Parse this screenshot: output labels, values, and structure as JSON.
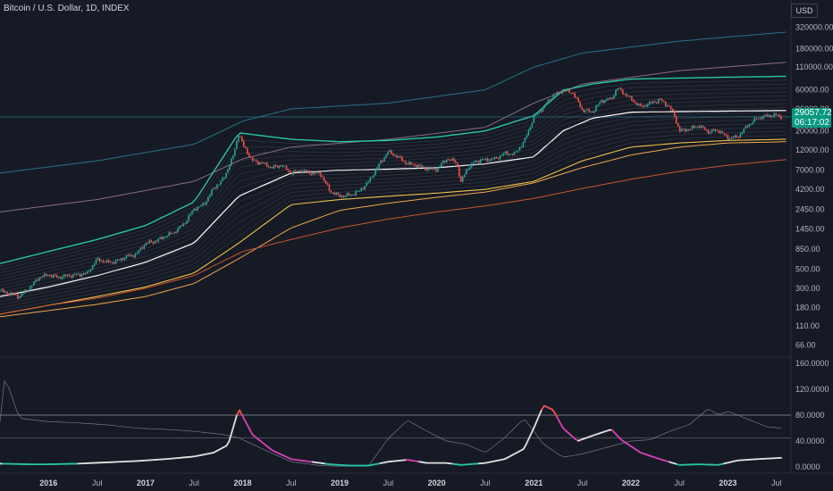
{
  "header": {
    "title": "Bitcoin / U.S. Dollar, 1D, INDEX",
    "currency_button": "USD"
  },
  "price_badge": {
    "price": "29057.72",
    "countdown": "06:17:02"
  },
  "colors": {
    "background": "#161a25",
    "candle_up": "#26a69a",
    "candle_down": "#ef5350",
    "top_band": "#2a6f87",
    "upper_band": "#8a6b86",
    "green_band": "#26c6a6",
    "mid_line": "#ffffff",
    "lower_band": "#f0c24a",
    "floor_line": "#f2a74b",
    "bottom_band": "#c9542f",
    "osc_main": "#e0e0e0",
    "osc_hot": "#d83fb6",
    "osc_peak": "#ef5350",
    "osc_cold": "#26c6a6",
    "osc_secondary": "#8a8f98"
  },
  "chart_data": [
    {
      "type": "line",
      "name": "price-panel",
      "title": "Bitcoin / U.S. Dollar, 1D, INDEX",
      "y_scale": "log",
      "ylim": [
        50,
        600000
      ],
      "y_ticks": [
        "320000.00",
        "180000.00",
        "110000.00",
        "60000.00",
        "36000.00",
        "20000.00",
        "12000.00",
        "7000.00",
        "4200.00",
        "2450.00",
        "1450.00",
        "850.00",
        "500.00",
        "300.00",
        "180.00",
        "110.00",
        "66.00"
      ],
      "y_tick_values": [
        320000,
        180000,
        110000,
        60000,
        36000,
        20000,
        12000,
        7000,
        4200,
        2450,
        1450,
        850,
        500,
        300,
        180,
        110,
        66
      ],
      "last_price": 29057.72,
      "price": {
        "x": [
          2015.5,
          2015.6,
          2015.7,
          2015.8,
          2015.9,
          2016.0,
          2016.1,
          2016.2,
          2016.3,
          2016.4,
          2016.5,
          2016.6,
          2016.7,
          2016.8,
          2016.9,
          2017.0,
          2017.1,
          2017.2,
          2017.3,
          2017.4,
          2017.5,
          2017.6,
          2017.7,
          2017.8,
          2017.9,
          2017.96,
          2018.0,
          2018.1,
          2018.2,
          2018.3,
          2018.4,
          2018.5,
          2018.6,
          2018.7,
          2018.8,
          2018.9,
          2018.96,
          2019.0,
          2019.1,
          2019.2,
          2019.3,
          2019.4,
          2019.5,
          2019.6,
          2019.7,
          2019.8,
          2019.9,
          2020.0,
          2020.1,
          2020.2,
          2020.25,
          2020.3,
          2020.4,
          2020.5,
          2020.6,
          2020.7,
          2020.8,
          2020.9,
          2021.0,
          2021.1,
          2021.2,
          2021.3,
          2021.4,
          2021.5,
          2021.6,
          2021.7,
          2021.8,
          2021.86,
          2021.9,
          2022.0,
          2022.1,
          2022.2,
          2022.3,
          2022.4,
          2022.45,
          2022.5,
          2022.6,
          2022.7,
          2022.8,
          2022.9,
          2023.0,
          2023.1,
          2023.2,
          2023.3,
          2023.4,
          2023.5,
          2023.55
        ],
        "y": [
          280,
          260,
          240,
          300,
          400,
          430,
          400,
          420,
          430,
          450,
          650,
          600,
          610,
          700,
          740,
          1000,
          1050,
          1200,
          1350,
          1700,
          2500,
          2800,
          4300,
          5500,
          10000,
          19000,
          14000,
          9000,
          8500,
          7500,
          8000,
          6500,
          7000,
          6500,
          6400,
          4000,
          3700,
          3500,
          3600,
          4000,
          5200,
          8000,
          11500,
          10000,
          8300,
          8000,
          7200,
          7200,
          9500,
          8800,
          5000,
          7000,
          9000,
          9300,
          9500,
          11000,
          10800,
          15000,
          29000,
          38000,
          52000,
          59000,
          56000,
          35000,
          33000,
          45000,
          47000,
          63000,
          58000,
          47000,
          38000,
          42000,
          46000,
          38000,
          30000,
          20000,
          21000,
          23000,
          19500,
          20500,
          16500,
          17000,
          23000,
          28000,
          30000,
          30500,
          29057
        ]
      },
      "bands": [
        {
          "name": "top",
          "x": [
            2015.5,
            2016.5,
            2017.5,
            2018.0,
            2018.5,
            2019.5,
            2020.5,
            2021.0,
            2021.5,
            2022.5,
            2023.6
          ],
          "y": [
            6500,
            9000,
            14000,
            26000,
            36000,
            42000,
            60000,
            110000,
            160000,
            220000,
            280000
          ]
        },
        {
          "name": "upper",
          "x": [
            2015.5,
            2016.5,
            2017.5,
            2018.0,
            2018.5,
            2019.5,
            2020.5,
            2021.0,
            2021.5,
            2022.5,
            2023.6
          ],
          "y": [
            2300,
            3200,
            5200,
            9500,
            13000,
            16000,
            22000,
            42000,
            70000,
            100000,
            125000
          ]
        },
        {
          "name": "green",
          "x": [
            2015.5,
            2016.0,
            2016.5,
            2017.0,
            2017.5,
            2017.96,
            2018.5,
            2019.0,
            2019.5,
            2020.0,
            2020.5,
            2021.0,
            2021.3,
            2021.6,
            2022.0,
            2022.5,
            2023.0,
            2023.6
          ],
          "y": [
            580,
            800,
            1100,
            1600,
            3000,
            19000,
            16000,
            15000,
            15500,
            17000,
            20000,
            30000,
            59000,
            70000,
            80000,
            82000,
            84000,
            86000
          ]
        },
        {
          "name": "mid",
          "x": [
            2015.5,
            2016.0,
            2016.5,
            2017.0,
            2017.5,
            2017.96,
            2018.5,
            2019.0,
            2019.5,
            2020.0,
            2020.5,
            2021.0,
            2021.3,
            2021.6,
            2022.0,
            2022.5,
            2023.0,
            2023.6
          ],
          "y": [
            240,
            310,
            420,
            600,
            1000,
            3500,
            6500,
            7000,
            7200,
            7500,
            8300,
            10000,
            20000,
            28000,
            33000,
            33500,
            34000,
            34500
          ]
        },
        {
          "name": "lower",
          "x": [
            2015.5,
            2016.0,
            2016.5,
            2017.0,
            2017.5,
            2017.96,
            2018.5,
            2019.0,
            2019.5,
            2020.0,
            2020.5,
            2021.0,
            2021.5,
            2022.0,
            2022.5,
            2023.0,
            2023.6
          ],
          "y": [
            150,
            190,
            240,
            310,
            450,
            1000,
            2800,
            3200,
            3500,
            3800,
            4200,
            5200,
            9000,
            13000,
            14500,
            15500,
            16000
          ]
        },
        {
          "name": "floor",
          "x": [
            2015.5,
            2016.0,
            2016.5,
            2017.0,
            2017.5,
            2018.0,
            2018.5,
            2019.0,
            2019.5,
            2020.0,
            2020.5,
            2021.0,
            2021.5,
            2022.0,
            2022.5,
            2023.0,
            2023.6
          ],
          "y": [
            140,
            165,
            195,
            240,
            340,
            700,
            1500,
            2400,
            2900,
            3400,
            3900,
            5000,
            7500,
            10500,
            13000,
            14500,
            15000
          ]
        },
        {
          "name": "bottom",
          "x": [
            2015.5,
            2016.0,
            2016.5,
            2017.0,
            2017.5,
            2018.0,
            2018.5,
            2019.0,
            2019.5,
            2020.0,
            2020.5,
            2021.0,
            2021.5,
            2022.0,
            2022.5,
            2023.0,
            2023.6
          ],
          "y": [
            150,
            190,
            230,
            300,
            420,
            800,
            1100,
            1500,
            1900,
            2300,
            2700,
            3300,
            4300,
            5500,
            6800,
            8000,
            9300
          ]
        }
      ]
    },
    {
      "type": "line",
      "name": "oscillator-panel",
      "ylim": [
        0,
        160
      ],
      "y_ticks": [
        "160.0000",
        "120.0000",
        "80.0000",
        "40.0000",
        "0.0000"
      ],
      "y_tick_values": [
        160,
        120,
        80,
        40,
        0
      ],
      "reference_levels": [
        80,
        45
      ],
      "main": {
        "x": [
          2015.5,
          2015.8,
          2016.0,
          2016.3,
          2016.6,
          2016.9,
          2017.2,
          2017.5,
          2017.7,
          2017.85,
          2017.96,
          2018.1,
          2018.3,
          2018.5,
          2018.7,
          2018.9,
          2019.1,
          2019.3,
          2019.5,
          2019.7,
          2019.9,
          2020.1,
          2020.25,
          2020.5,
          2020.7,
          2020.9,
          2021.0,
          2021.1,
          2021.2,
          2021.3,
          2021.45,
          2021.6,
          2021.8,
          2021.9,
          2022.1,
          2022.3,
          2022.5,
          2022.7,
          2022.9,
          2023.1,
          2023.3,
          2023.55
        ],
        "y": [
          5,
          4,
          4,
          5,
          7,
          9,
          12,
          16,
          22,
          34,
          90,
          50,
          26,
          12,
          8,
          4,
          2,
          2,
          8,
          11,
          6,
          6,
          3,
          6,
          12,
          28,
          60,
          95,
          88,
          60,
          40,
          48,
          58,
          42,
          22,
          12,
          3,
          4,
          3,
          10,
          12,
          14
        ]
      },
      "secondary": {
        "x": [
          2015.5,
          2015.55,
          2015.7,
          2016.0,
          2016.3,
          2016.6,
          2016.9,
          2017.2,
          2017.5,
          2017.8,
          2017.96,
          2018.2,
          2018.5,
          2018.8,
          2019.0,
          2019.3,
          2019.5,
          2019.7,
          2019.9,
          2020.1,
          2020.3,
          2020.5,
          2020.7,
          2020.9,
          2021.1,
          2021.3,
          2021.5,
          2021.8,
          2022.0,
          2022.2,
          2022.4,
          2022.6,
          2022.8,
          2022.9,
          2023.0,
          2023.2,
          2023.4,
          2023.55
        ],
        "y": [
          70,
          140,
          75,
          70,
          68,
          65,
          60,
          58,
          55,
          50,
          45,
          28,
          8,
          2,
          1,
          2,
          44,
          72,
          55,
          40,
          35,
          22,
          45,
          75,
          35,
          15,
          20,
          32,
          40,
          42,
          55,
          65,
          90,
          80,
          86,
          74,
          62,
          60
        ]
      }
    }
  ],
  "x_axis": {
    "labels": [
      {
        "text": "2016",
        "x": 2016.0,
        "bold": true
      },
      {
        "text": "Jul",
        "x": 2016.5,
        "bold": false
      },
      {
        "text": "2017",
        "x": 2017.0,
        "bold": true
      },
      {
        "text": "Jul",
        "x": 2017.5,
        "bold": false
      },
      {
        "text": "2018",
        "x": 2018.0,
        "bold": true
      },
      {
        "text": "Jul",
        "x": 2018.5,
        "bold": false
      },
      {
        "text": "2019",
        "x": 2019.0,
        "bold": true
      },
      {
        "text": "Jul",
        "x": 2019.5,
        "bold": false
      },
      {
        "text": "2020",
        "x": 2020.0,
        "bold": true
      },
      {
        "text": "Jul",
        "x": 2020.5,
        "bold": false
      },
      {
        "text": "2021",
        "x": 2021.0,
        "bold": true
      },
      {
        "text": "Jul",
        "x": 2021.5,
        "bold": false
      },
      {
        "text": "2022",
        "x": 2022.0,
        "bold": true
      },
      {
        "text": "Jul",
        "x": 2022.5,
        "bold": false
      },
      {
        "text": "2023",
        "x": 2023.0,
        "bold": true
      },
      {
        "text": "Jul",
        "x": 2023.5,
        "bold": false
      }
    ]
  }
}
